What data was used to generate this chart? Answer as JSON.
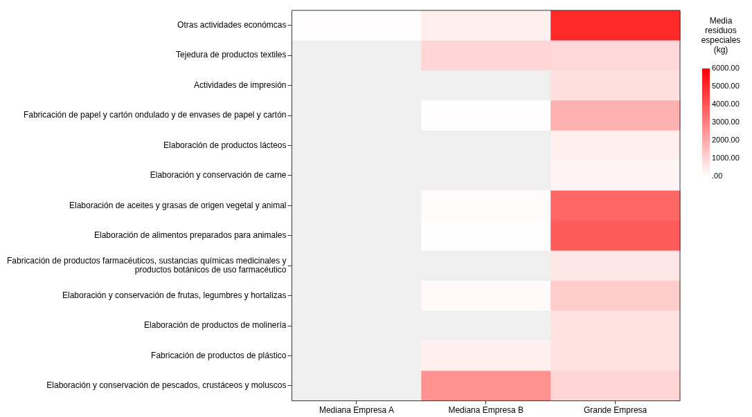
{
  "chart_data": {
    "type": "heatmap",
    "categories": [
      "Mediana Empresa A",
      "Mediana Empresa B",
      "Grande Empresa"
    ],
    "y_categories": [
      "Otras actividades económcas",
      "Tejedura de productos textiles",
      "Actividades de impresión",
      "Fabricación de papel y cartón ondulado y de envases de papel y cartón",
      "Elaboración de productos lácteos",
      "Elaboración y conservación de carne",
      "Elaboración de aceites y grasas de origen vegetal y animal",
      "Elaboración de alimentos preparados para animales",
      "Fabricación de productos farmacéuticos, sustancias químicas medicinales y productos botánicos de uso farmacéutico",
      "Elaboración y conservación de frutas, legumbres y hortalizas",
      "Elaboración de productos de molinería",
      "Fabricación de productos de plástico",
      "Elaboración y conservación de pescados, crustáceos y moluscos"
    ],
    "cells": [
      [
        50,
        400,
        5000
      ],
      [
        null,
        1000,
        900
      ],
      [
        null,
        null,
        750
      ],
      [
        null,
        50,
        1850
      ],
      [
        null,
        null,
        380
      ],
      [
        null,
        null,
        250
      ],
      [
        null,
        100,
        3600
      ],
      [
        null,
        20,
        3850
      ],
      [
        null,
        null,
        600
      ],
      [
        null,
        150,
        1200
      ],
      [
        null,
        null,
        700
      ],
      [
        null,
        350,
        700
      ],
      [
        null,
        2600,
        1000
      ]
    ],
    "clabel": "Media residuos especiales (kg)",
    "clim": [
      0,
      6000
    ],
    "cticks": [
      {
        "value": 6000,
        "label": "6000.00"
      },
      {
        "value": 5000,
        "label": "5000.00"
      },
      {
        "value": 4000,
        "label": "4000.00"
      },
      {
        "value": 3000,
        "label": "3000.00"
      },
      {
        "value": 2000,
        "label": "2000.00"
      },
      {
        "value": 1000,
        "label": "1000.00"
      },
      {
        "value": 0,
        "label": ".00"
      }
    ]
  }
}
